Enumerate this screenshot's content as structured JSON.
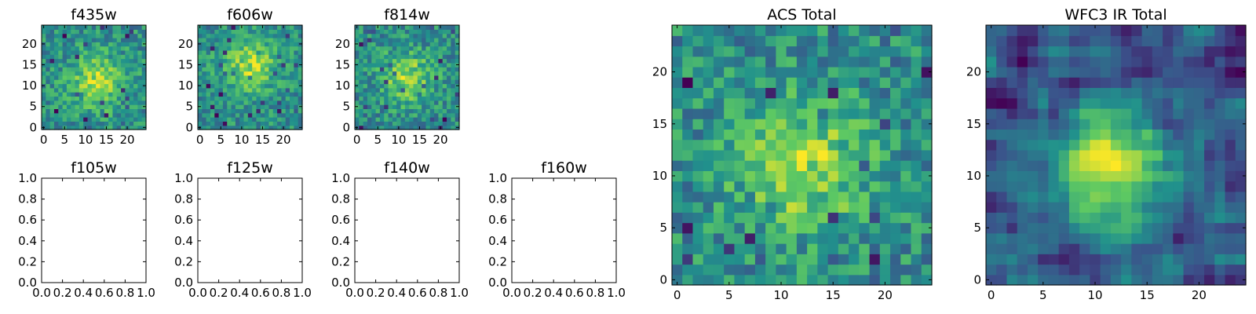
{
  "colormap": [
    "#440154",
    "#3b528b",
    "#21918c",
    "#5ec962",
    "#fde725"
  ],
  "chart_data": [
    {
      "id": "f435w",
      "type": "heatmap",
      "title": "f435w",
      "grid": [
        25,
        25
      ],
      "xticks": [
        "0",
        "5",
        "10",
        "15",
        "20"
      ],
      "yticks": [
        "0",
        "5",
        "10",
        "15",
        "20"
      ],
      "peak": [
        13,
        11
      ],
      "seed": 11,
      "smooth": 0,
      "contrast": 0.55
    },
    {
      "id": "f606w",
      "type": "heatmap",
      "title": "f606w",
      "grid": [
        25,
        25
      ],
      "xticks": [
        "0",
        "5",
        "10",
        "15",
        "20"
      ],
      "yticks": [
        "0",
        "5",
        "10",
        "15",
        "20"
      ],
      "peak": [
        12,
        15
      ],
      "seed": 23,
      "smooth": 0,
      "contrast": 0.5
    },
    {
      "id": "f814w",
      "type": "heatmap",
      "title": "f814w",
      "grid": [
        25,
        25
      ],
      "xticks": [
        "0",
        "5",
        "10",
        "15",
        "20"
      ],
      "yticks": [
        "0",
        "5",
        "10",
        "15",
        "20"
      ],
      "peak": [
        12,
        12
      ],
      "seed": 37,
      "smooth": 0,
      "contrast": 0.6
    },
    {
      "id": "f105w",
      "type": "empty",
      "title": "f105w",
      "xlim": [
        0,
        1
      ],
      "ylim": [
        0,
        1
      ],
      "xticks": [
        "0.0",
        "0.2",
        "0.4",
        "0.6",
        "0.8",
        "1.0"
      ],
      "yticks": [
        "0.0",
        "0.2",
        "0.4",
        "0.6",
        "0.8",
        "1.0"
      ]
    },
    {
      "id": "f125w",
      "type": "empty",
      "title": "f125w",
      "xlim": [
        0,
        1
      ],
      "ylim": [
        0,
        1
      ],
      "xticks": [
        "0.0",
        "0.2",
        "0.4",
        "0.6",
        "0.8",
        "1.0"
      ],
      "yticks": [
        "0.0",
        "0.2",
        "0.4",
        "0.6",
        "0.8",
        "1.0"
      ]
    },
    {
      "id": "f140w",
      "type": "empty",
      "title": "f140w",
      "xlim": [
        0,
        1
      ],
      "ylim": [
        0,
        1
      ],
      "xticks": [
        "0.0",
        "0.2",
        "0.4",
        "0.6",
        "0.8",
        "1.0"
      ],
      "yticks": [
        "0.0",
        "0.2",
        "0.4",
        "0.6",
        "0.8",
        "1.0"
      ]
    },
    {
      "id": "f160w",
      "type": "empty",
      "title": "f160w",
      "xlim": [
        0,
        1
      ],
      "ylim": [
        0,
        1
      ],
      "xticks": [
        "0.0",
        "0.2",
        "0.4",
        "0.6",
        "0.8",
        "1.0"
      ],
      "yticks": [
        "0.0",
        "0.2",
        "0.4",
        "0.6",
        "0.8",
        "1.0"
      ]
    },
    {
      "id": "acs-total",
      "type": "heatmap",
      "title": "ACS Total",
      "grid": [
        25,
        25
      ],
      "xticks": [
        "0",
        "5",
        "10",
        "15",
        "20"
      ],
      "yticks": [
        "0",
        "5",
        "10",
        "15",
        "20"
      ],
      "peak": [
        12,
        11
      ],
      "seed": 51,
      "smooth": 0,
      "contrast": 0.6
    },
    {
      "id": "wfc3-ir-total",
      "type": "heatmap",
      "title": "WFC3 IR Total",
      "grid": [
        25,
        25
      ],
      "xticks": [
        "0",
        "5",
        "10",
        "15",
        "20"
      ],
      "yticks": [
        "0",
        "5",
        "10",
        "15",
        "20"
      ],
      "peak": [
        12,
        11
      ],
      "seed": 73,
      "smooth": 1,
      "contrast": 0.9
    }
  ]
}
